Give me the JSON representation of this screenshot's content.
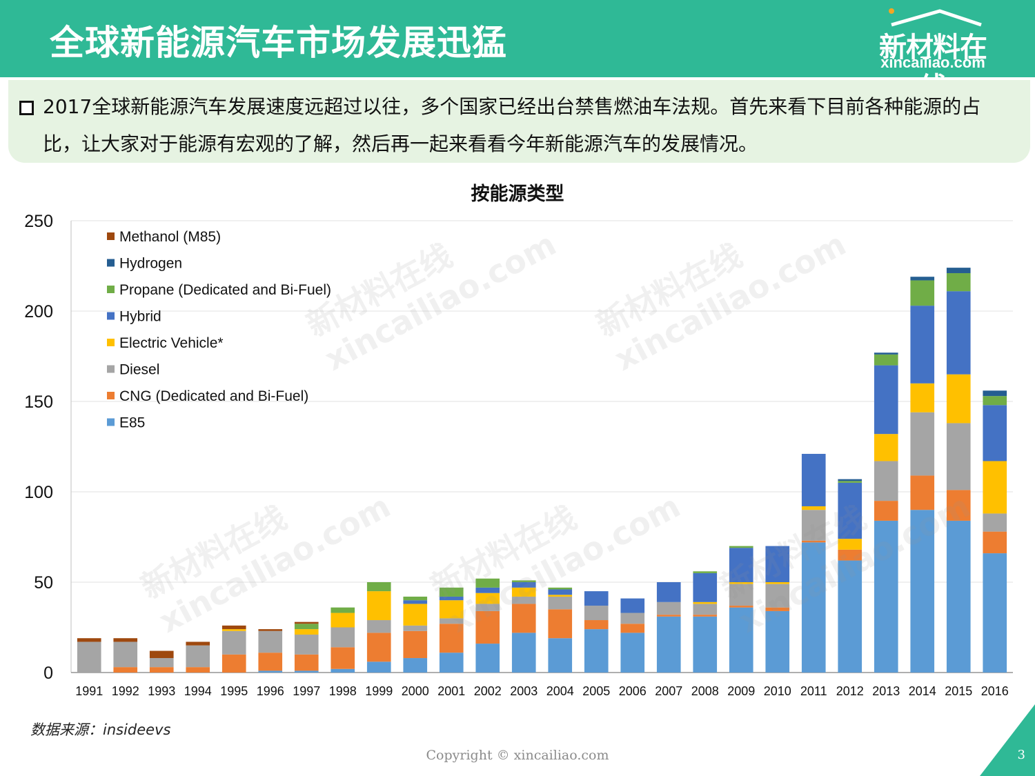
{
  "header": {
    "title": "全球新能源汽车市场发展迅猛",
    "logo_cn": "新材料在线",
    "logo_en": "xincailiao.com"
  },
  "intro": {
    "line1": "2017全球新能源汽车发展速度远超过以往，多个国家已经出台禁售燃油车法规。首先来看下目前各种能源的占",
    "line2": "比，让大家对于能源有宏观的了解，然后再一起来看看今年新能源汽车的发展情况。"
  },
  "footer": {
    "source": "数据来源：insideevs",
    "copyright": "Copyright © xincailiao.com",
    "page": "3"
  },
  "watermark": {
    "cn": "新材料在线",
    "en": "xincailiao.com"
  },
  "colors": {
    "header_bg": "#2fb996",
    "intro_bg": "#e6f3e2"
  },
  "chart_data": {
    "type": "bar",
    "stacked": true,
    "title": "按能源类型",
    "ylim": [
      0,
      250
    ],
    "yticks": [
      0,
      50,
      100,
      150,
      200,
      250
    ],
    "grid": true,
    "legend_position": "top-left",
    "categories": [
      "1991",
      "1992",
      "1993",
      "1994",
      "1995",
      "1996",
      "1997",
      "1998",
      "1999",
      "2000",
      "2001",
      "2002",
      "2003",
      "2004",
      "2005",
      "2006",
      "2007",
      "2008",
      "2009",
      "2010",
      "2011",
      "2012",
      "2013",
      "2014",
      "2015",
      "2016"
    ],
    "series": [
      {
        "name": "E85",
        "color": "#5b9bd5",
        "values": [
          0,
          0,
          0,
          0,
          0,
          1,
          1,
          2,
          6,
          8,
          11,
          16,
          22,
          19,
          24,
          22,
          31,
          31,
          36,
          34,
          72,
          62,
          84,
          90,
          84,
          66
        ]
      },
      {
        "name": "CNG (Dedicated and Bi-Fuel)",
        "color": "#ed7d31",
        "values": [
          0,
          3,
          3,
          3,
          10,
          10,
          9,
          12,
          16,
          15,
          16,
          18,
          16,
          16,
          5,
          5,
          1,
          1,
          1,
          2,
          1,
          6,
          11,
          19,
          17,
          12
        ]
      },
      {
        "name": "Diesel",
        "color": "#a5a5a5",
        "values": [
          17,
          14,
          5,
          12,
          13,
          12,
          11,
          11,
          7,
          3,
          3,
          4,
          4,
          7,
          8,
          6,
          7,
          6,
          12,
          13,
          17,
          0,
          22,
          35,
          37,
          10
        ]
      },
      {
        "name": "Electric Vehicle*",
        "color": "#ffc000",
        "values": [
          0,
          0,
          0,
          0,
          1,
          0,
          3,
          8,
          16,
          12,
          10,
          6,
          5,
          1,
          0,
          0,
          0,
          1,
          1,
          1,
          2,
          6,
          15,
          16,
          27,
          29
        ]
      },
      {
        "name": "Hybrid",
        "color": "#4472c4",
        "values": [
          0,
          0,
          0,
          0,
          0,
          0,
          0,
          0,
          0,
          2,
          2,
          3,
          3,
          3,
          8,
          8,
          11,
          16,
          19,
          20,
          29,
          31,
          38,
          43,
          46,
          31
        ]
      },
      {
        "name": "Propane (Dedicated and Bi-Fuel)",
        "color": "#70ad47",
        "values": [
          0,
          0,
          0,
          0,
          0,
          0,
          3,
          3,
          5,
          2,
          5,
          5,
          1,
          1,
          0,
          0,
          0,
          1,
          1,
          0,
          0,
          1,
          6,
          14,
          10,
          5
        ]
      },
      {
        "name": "Hydrogen",
        "color": "#255e91",
        "values": [
          0,
          0,
          0,
          0,
          0,
          0,
          0,
          0,
          0,
          0,
          0,
          0,
          0,
          0,
          0,
          0,
          0,
          0,
          0,
          0,
          0,
          1,
          1,
          2,
          3,
          3
        ]
      },
      {
        "name": "Methanol (M85)",
        "color": "#9e480e",
        "values": [
          2,
          2,
          4,
          2,
          2,
          1,
          1,
          0,
          0,
          0,
          0,
          0,
          0,
          0,
          0,
          0,
          0,
          0,
          0,
          0,
          0,
          0,
          0,
          0,
          0,
          0
        ]
      }
    ]
  }
}
